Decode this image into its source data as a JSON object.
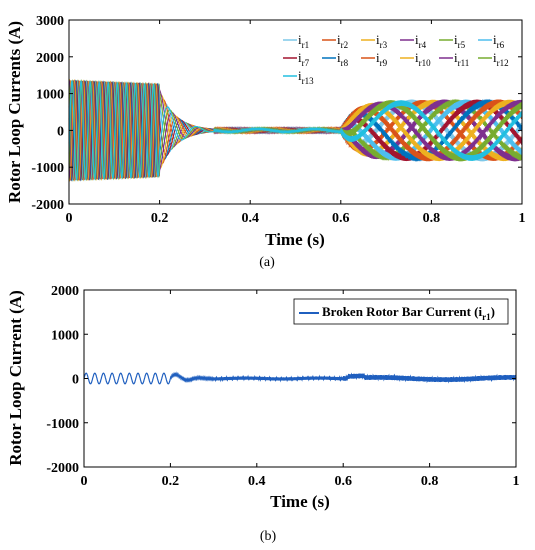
{
  "chart_data": [
    {
      "type": "line",
      "caption": "(a)",
      "xlabel": "Time (s)",
      "ylabel": "Rotor Loop Currents (A)",
      "xlim": [
        0,
        1
      ],
      "ylim": [
        -2000,
        3000
      ],
      "xticks": [
        "0",
        "0.2",
        "0.4",
        "0.6",
        "0.8",
        "1"
      ],
      "yticks": [
        "-2000",
        "-1000",
        "0",
        "1000",
        "2000",
        "3000"
      ],
      "legend_position": "top-right",
      "series": [
        {
          "name": "i",
          "sub": "r1",
          "color": "#7ec8e8"
        },
        {
          "name": "i",
          "sub": "r2",
          "color": "#d95319"
        },
        {
          "name": "i",
          "sub": "r3",
          "color": "#edb120"
        },
        {
          "name": "i",
          "sub": "r4",
          "color": "#7e2f8e"
        },
        {
          "name": "i",
          "sub": "r5",
          "color": "#77ac30"
        },
        {
          "name": "i",
          "sub": "r6",
          "color": "#4dbeee"
        },
        {
          "name": "i",
          "sub": "r7",
          "color": "#a2142f"
        },
        {
          "name": "i",
          "sub": "r8",
          "color": "#0072bd"
        },
        {
          "name": "i",
          "sub": "r9",
          "color": "#d95319"
        },
        {
          "name": "i",
          "sub": "r10",
          "color": "#edb120"
        },
        {
          "name": "i",
          "sub": "r11",
          "color": "#7e2f8e"
        },
        {
          "name": "i",
          "sub": "r12",
          "color": "#77ac30"
        },
        {
          "name": "i",
          "sub": "r13",
          "color": "#22bfe0"
        }
      ]
    },
    {
      "type": "line",
      "caption": "(b)",
      "xlabel": "Time (s)",
      "ylabel": "Rotor Loop Current (A)",
      "xlim": [
        0,
        1
      ],
      "ylim": [
        -2000,
        2000
      ],
      "xticks": [
        "0",
        "0.2",
        "0.4",
        "0.6",
        "0.8",
        "1"
      ],
      "yticks": [
        "-2000",
        "-1000",
        "0",
        "1000",
        "2000"
      ],
      "legend_position": "top-right",
      "series": [
        {
          "name": "Broken Rotor Bar Current (i",
          "sub": "r1",
          "suffix": ")",
          "color": "#1f5fbf"
        }
      ]
    }
  ]
}
